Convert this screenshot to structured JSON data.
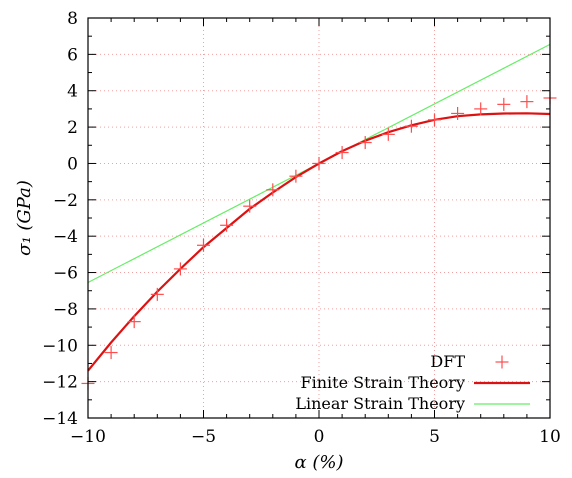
{
  "chart_data": {
    "type": "line",
    "xlabel": "α (%)",
    "ylabel": "σ₁ (GPa)",
    "xlim": [
      -10,
      10
    ],
    "ylim": [
      -14,
      8
    ],
    "x_ticks": [
      -10,
      -5,
      0,
      5,
      10
    ],
    "x_tick_labels": [
      "−10",
      "−5",
      "0",
      "5",
      "10"
    ],
    "y_ticks": [
      -14,
      -12,
      -10,
      -8,
      -6,
      -4,
      -2,
      0,
      2,
      4,
      6,
      8
    ],
    "y_tick_labels": [
      "−14",
      "−12",
      "−10",
      "−8",
      "−6",
      "−4",
      "−2",
      "0",
      "2",
      "4",
      "6",
      "8"
    ],
    "grid": true,
    "legend_position": "bottom-right",
    "series": [
      {
        "name": "DFT",
        "kind": "scatter",
        "marker": "plus",
        "color": "#ff4d4d",
        "x": [
          -10,
          -9,
          -8,
          -7,
          -6,
          -5,
          -4,
          -3,
          -2,
          -1,
          0,
          1,
          2,
          3,
          4,
          5,
          6,
          7,
          8,
          9,
          10
        ],
        "y": [
          -12.1,
          -10.4,
          -8.7,
          -7.2,
          -5.8,
          -4.5,
          -3.4,
          -2.35,
          -1.45,
          -0.7,
          0.0,
          0.6,
          1.15,
          1.6,
          2.05,
          2.4,
          2.75,
          3.0,
          3.25,
          3.4,
          3.6
        ]
      },
      {
        "name": "Finite Strain Theory",
        "kind": "line",
        "color": "#dd1111",
        "width": "thick",
        "x": [
          -10,
          -9,
          -8,
          -7,
          -6,
          -5,
          -4,
          -3,
          -2,
          -1,
          0,
          1,
          2,
          3,
          4,
          5,
          6,
          7,
          8,
          9,
          10
        ],
        "y": [
          -11.4,
          -9.85,
          -8.4,
          -7.05,
          -5.8,
          -4.6,
          -3.55,
          -2.5,
          -1.6,
          -0.75,
          0.0,
          0.68,
          1.25,
          1.72,
          2.1,
          2.4,
          2.6,
          2.7,
          2.75,
          2.76,
          2.72
        ]
      },
      {
        "name": "Linear Strain Theory",
        "kind": "line",
        "color": "#66ee66",
        "width": "thin",
        "x": [
          -10,
          10
        ],
        "y": [
          -6.55,
          6.55
        ]
      }
    ]
  }
}
